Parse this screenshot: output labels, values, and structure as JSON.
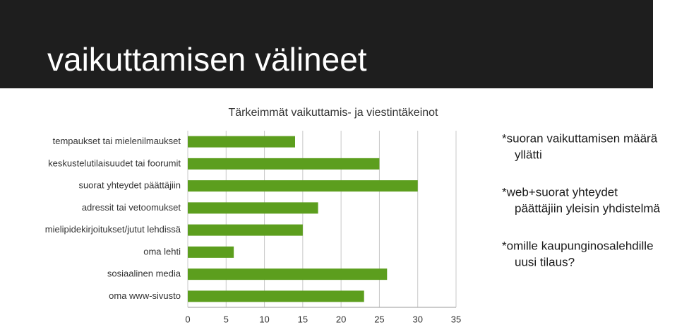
{
  "slide_title": "vaikuttamisen välineet",
  "chart_data": {
    "type": "bar",
    "orientation": "horizontal",
    "title": "Tärkeimmät vaikuttamis- ja viestintäkeinot",
    "categories": [
      "tempaukset tai mielenilmaukset",
      "keskustelutilaisuudet tai foorumit",
      "suorat yhteydet päättäjiin",
      "adressit tai vetoomukset",
      "mielipidekirjoitukset/jutut lehdissä",
      "oma lehti",
      "sosiaalinen media",
      "oma www-sivusto"
    ],
    "values": [
      14,
      25,
      30,
      17,
      15,
      6,
      26,
      23
    ],
    "color": "#5c9e1e",
    "xlim": [
      0,
      35
    ],
    "xticks": [
      0,
      5,
      10,
      15,
      20,
      25,
      30,
      35
    ],
    "grid": true
  },
  "notes": [
    [
      "*suoran vaikuttamisen määrä",
      "yllätti"
    ],
    [
      "*web+suorat yhteydet",
      "päättäjiin yleisin yhdistelmä"
    ],
    [
      "*omille kaupunginosalehdille",
      "uusi tilaus?"
    ]
  ]
}
